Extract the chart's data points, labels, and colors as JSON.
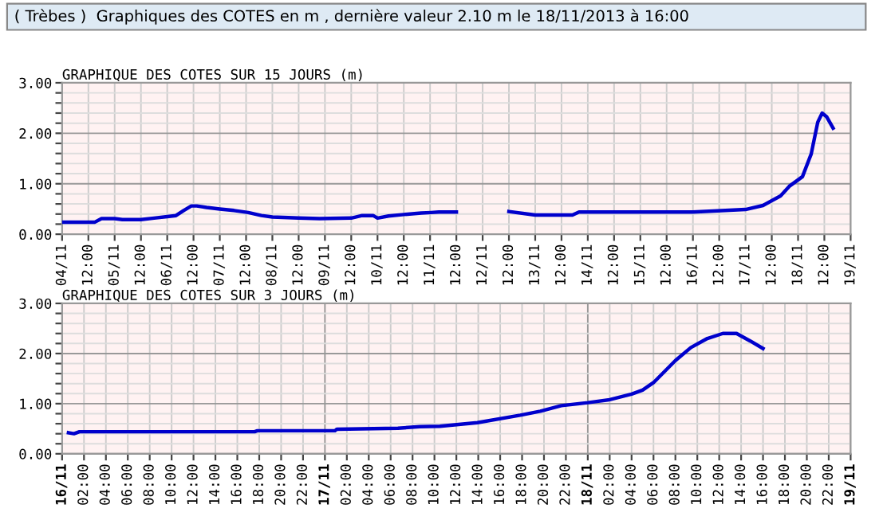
{
  "chart_data": [
    {
      "type": "line",
      "title": "GRAPHIQUE DES COTES SUR 15 JOURS (m)",
      "annotations": [
        "( Trèbes )  Graphiques des COTES en m , dernière valeur 2.10 m le 18/11/2013 à 16:00"
      ],
      "grid": true,
      "marker": "none",
      "line_style": "solid",
      "xlim": [
        "2013-11-04T00:00",
        "2013-11-19T00:00"
      ],
      "ylim": [
        0,
        3
      ],
      "series": [
        {
          "color": "#0000cc",
          "x": [
            "2013-11-04T00:00",
            "2013-11-04T15:00",
            "2013-11-04T18:00",
            "2013-11-05T00:00",
            "2013-11-05T03:30",
            "2013-11-05T12:00",
            "2013-11-05T18:00",
            "2013-11-06T00:00",
            "2013-11-06T04:00",
            "2013-11-06T07:30",
            "2013-11-06T11:00",
            "2013-11-06T13:30",
            "2013-11-06T18:00",
            "2013-11-07T00:00",
            "2013-11-07T06:30",
            "2013-11-07T13:00",
            "2013-11-07T19:00",
            "2013-11-08T00:00",
            "2013-11-08T12:00",
            "2013-11-08T21:30",
            "2013-11-09T12:00",
            "2013-11-09T17:00",
            "2013-11-09T22:00",
            "2013-11-10T00:00",
            "2013-11-10T05:00",
            "2013-11-10T12:00",
            "2013-11-10T20:00",
            "2013-11-11T00:30",
            "2013-11-11T04:00",
            "2013-11-11T12:00",
            "2013-11-12T00:00",
            "2013-11-12T12:00",
            "2013-11-13T00:00",
            "2013-11-13T17:00",
            "2013-11-13T20:00",
            "2013-11-14T14:00",
            "2013-11-16T00:00",
            "2013-11-17T00:00",
            "2013-11-17T08:00",
            "2013-11-17T16:00",
            "2013-11-17T20:00",
            "2013-11-18T02:00",
            "2013-11-18T06:00",
            "2013-11-18T09:00",
            "2013-11-18T11:00",
            "2013-11-18T13:00",
            "2013-11-18T16:00"
          ],
          "values": [
            0.24,
            0.24,
            0.31,
            0.31,
            0.29,
            0.29,
            0.32,
            0.35,
            0.37,
            0.47,
            0.56,
            0.56,
            0.53,
            0.5,
            0.47,
            0.43,
            0.37,
            0.34,
            0.32,
            0.31,
            0.32,
            0.37,
            0.37,
            0.32,
            0.36,
            0.39,
            0.42,
            0.43,
            0.44,
            0.44,
            null,
            0.45,
            0.38,
            0.38,
            0.44,
            0.44,
            0.44,
            0.49,
            0.57,
            0.76,
            0.95,
            1.14,
            1.59,
            2.22,
            2.4,
            2.33,
            2.1
          ]
        }
      ],
      "xticks": [
        {
          "value": "2013-11-04T00:00",
          "label": "04/11"
        },
        {
          "value": "2013-11-04T12:00",
          "label": "12:00"
        },
        {
          "value": "2013-11-05T00:00",
          "label": "05/11"
        },
        {
          "value": "2013-11-05T12:00",
          "label": "12:00"
        },
        {
          "value": "2013-11-06T00:00",
          "label": "06/11"
        },
        {
          "value": "2013-11-06T12:00",
          "label": "12:00"
        },
        {
          "value": "2013-11-07T00:00",
          "label": "07/11"
        },
        {
          "value": "2013-11-07T12:00",
          "label": "12:00"
        },
        {
          "value": "2013-11-08T00:00",
          "label": "08/11"
        },
        {
          "value": "2013-11-08T12:00",
          "label": "12:00"
        },
        {
          "value": "2013-11-09T00:00",
          "label": "09/11"
        },
        {
          "value": "2013-11-09T12:00",
          "label": "12:00"
        },
        {
          "value": "2013-11-10T00:00",
          "label": "10/11"
        },
        {
          "value": "2013-11-10T12:00",
          "label": "12:00"
        },
        {
          "value": "2013-11-11T00:00",
          "label": "11/11"
        },
        {
          "value": "2013-11-11T12:00",
          "label": "12:00"
        },
        {
          "value": "2013-11-12T00:00",
          "label": "12/11"
        },
        {
          "value": "2013-11-12T12:00",
          "label": "12:00"
        },
        {
          "value": "2013-11-13T00:00",
          "label": "13/11"
        },
        {
          "value": "2013-11-13T12:00",
          "label": "12:00"
        },
        {
          "value": "2013-11-14T00:00",
          "label": "14/11"
        },
        {
          "value": "2013-11-14T12:00",
          "label": "12:00"
        },
        {
          "value": "2013-11-15T00:00",
          "label": "15/11"
        },
        {
          "value": "2013-11-15T12:00",
          "label": "12:00"
        },
        {
          "value": "2013-11-16T00:00",
          "label": "16/11"
        },
        {
          "value": "2013-11-16T12:00",
          "label": "12:00"
        },
        {
          "value": "2013-11-17T00:00",
          "label": "17/11"
        },
        {
          "value": "2013-11-17T12:00",
          "label": "12:00"
        },
        {
          "value": "2013-11-18T00:00",
          "label": "18/11"
        },
        {
          "value": "2013-11-18T12:00",
          "label": "12:00"
        },
        {
          "value": "2013-11-19T00:00",
          "label": "19/11"
        }
      ],
      "yticks": [
        {
          "value": 0,
          "label": "0.00"
        },
        {
          "value": 0.2,
          "label": null
        },
        {
          "value": 0.4,
          "label": null
        },
        {
          "value": 0.6,
          "label": null
        },
        {
          "value": 0.8,
          "label": null
        },
        {
          "value": 1,
          "label": "1.00"
        },
        {
          "value": 1.2,
          "label": null
        },
        {
          "value": 1.4,
          "label": null
        },
        {
          "value": 1.6,
          "label": null
        },
        {
          "value": 1.8,
          "label": null
        },
        {
          "value": 2,
          "label": "2.00"
        },
        {
          "value": 2.2,
          "label": null
        },
        {
          "value": 2.4,
          "label": null
        },
        {
          "value": 2.6,
          "label": null
        },
        {
          "value": 2.8,
          "label": null
        },
        {
          "value": 3,
          "label": "3.00"
        }
      ]
    },
    {
      "type": "line",
      "title": "GRAPHIQUE DES COTES SUR 3 JOURS (m)",
      "grid": true,
      "marker": "none",
      "line_style": "solid",
      "xlim": [
        "2013-11-16T00:00",
        "2013-11-19T00:00"
      ],
      "ylim": [
        0,
        3
      ],
      "series": [
        {
          "color": "#0000cc",
          "x": [
            "2013-11-16T00:35",
            "2013-11-16T01:05",
            "2013-11-16T01:35",
            "2013-11-16T17:35",
            "2013-11-16T17:50",
            "2013-11-17T00:55",
            "2013-11-17T01:05",
            "2013-11-17T06:40",
            "2013-11-17T08:40",
            "2013-11-17T10:30",
            "2013-11-17T13:55",
            "2013-11-17T17:50",
            "2013-11-17T19:40",
            "2013-11-17T21:35",
            "2013-11-18T00:00",
            "2013-11-18T02:00",
            "2013-11-18T04:00",
            "2013-11-18T05:00",
            "2013-11-18T06:00",
            "2013-11-18T08:00",
            "2013-11-18T09:25",
            "2013-11-18T10:55",
            "2013-11-18T12:20",
            "2013-11-18T13:35",
            "2013-11-18T14:50",
            "2013-11-18T16:00"
          ],
          "values": [
            0.42,
            0.4,
            0.44,
            0.44,
            0.46,
            0.46,
            0.49,
            0.51,
            0.54,
            0.55,
            0.62,
            0.77,
            0.85,
            0.96,
            1.02,
            1.08,
            1.19,
            1.27,
            1.42,
            1.86,
            2.12,
            2.3,
            2.4,
            2.4,
            2.25,
            2.1
          ]
        }
      ],
      "xticks": [
        {
          "value": "2013-11-16T00:00",
          "label": "16/11"
        },
        {
          "value": "2013-11-16T02:00",
          "label": "02:00"
        },
        {
          "value": "2013-11-16T04:00",
          "label": "04:00"
        },
        {
          "value": "2013-11-16T06:00",
          "label": "06:00"
        },
        {
          "value": "2013-11-16T08:00",
          "label": "08:00"
        },
        {
          "value": "2013-11-16T10:00",
          "label": "10:00"
        },
        {
          "value": "2013-11-16T12:00",
          "label": "12:00"
        },
        {
          "value": "2013-11-16T14:00",
          "label": "14:00"
        },
        {
          "value": "2013-11-16T16:00",
          "label": "16:00"
        },
        {
          "value": "2013-11-16T18:00",
          "label": "18:00"
        },
        {
          "value": "2013-11-16T20:00",
          "label": "20:00"
        },
        {
          "value": "2013-11-16T22:00",
          "label": "22:00"
        },
        {
          "value": "2013-11-17T00:00",
          "label": "17/11"
        },
        {
          "value": "2013-11-17T02:00",
          "label": "02:00"
        },
        {
          "value": "2013-11-17T04:00",
          "label": "04:00"
        },
        {
          "value": "2013-11-17T06:00",
          "label": "06:00"
        },
        {
          "value": "2013-11-17T08:00",
          "label": "08:00"
        },
        {
          "value": "2013-11-17T10:00",
          "label": "10:00"
        },
        {
          "value": "2013-11-17T12:00",
          "label": "12:00"
        },
        {
          "value": "2013-11-17T14:00",
          "label": "14:00"
        },
        {
          "value": "2013-11-17T16:00",
          "label": "16:00"
        },
        {
          "value": "2013-11-17T18:00",
          "label": "18:00"
        },
        {
          "value": "2013-11-17T20:00",
          "label": "20:00"
        },
        {
          "value": "2013-11-17T22:00",
          "label": "22:00"
        },
        {
          "value": "2013-11-18T00:00",
          "label": "18/11"
        },
        {
          "value": "2013-11-18T02:00",
          "label": "02:00"
        },
        {
          "value": "2013-11-18T04:00",
          "label": "04:00"
        },
        {
          "value": "2013-11-18T06:00",
          "label": "06:00"
        },
        {
          "value": "2013-11-18T08:00",
          "label": "08:00"
        },
        {
          "value": "2013-11-18T10:00",
          "label": "10:00"
        },
        {
          "value": "2013-11-18T12:00",
          "label": "12:00"
        },
        {
          "value": "2013-11-18T14:00",
          "label": "14:00"
        },
        {
          "value": "2013-11-18T16:00",
          "label": "16:00"
        },
        {
          "value": "2013-11-18T18:00",
          "label": "18:00"
        },
        {
          "value": "2013-11-18T20:00",
          "label": "20:00"
        },
        {
          "value": "2013-11-18T22:00",
          "label": "22:00"
        },
        {
          "value": "2013-11-19T00:00",
          "label": "19/11"
        }
      ],
      "yticks": [
        {
          "value": 0,
          "label": "0.00"
        },
        {
          "value": 0.2,
          "label": null
        },
        {
          "value": 0.4,
          "label": null
        },
        {
          "value": 0.6,
          "label": null
        },
        {
          "value": 0.8,
          "label": null
        },
        {
          "value": 1,
          "label": "1.00"
        },
        {
          "value": 1.2,
          "label": null
        },
        {
          "value": 1.4,
          "label": null
        },
        {
          "value": 1.6,
          "label": null
        },
        {
          "value": 1.8,
          "label": null
        },
        {
          "value": 2,
          "label": "2.00"
        },
        {
          "value": 2.2,
          "label": null
        },
        {
          "value": 2.4,
          "label": null
        },
        {
          "value": 2.6,
          "label": null
        },
        {
          "value": 2.8,
          "label": null
        },
        {
          "value": 3,
          "label": "3.00"
        }
      ]
    }
  ]
}
